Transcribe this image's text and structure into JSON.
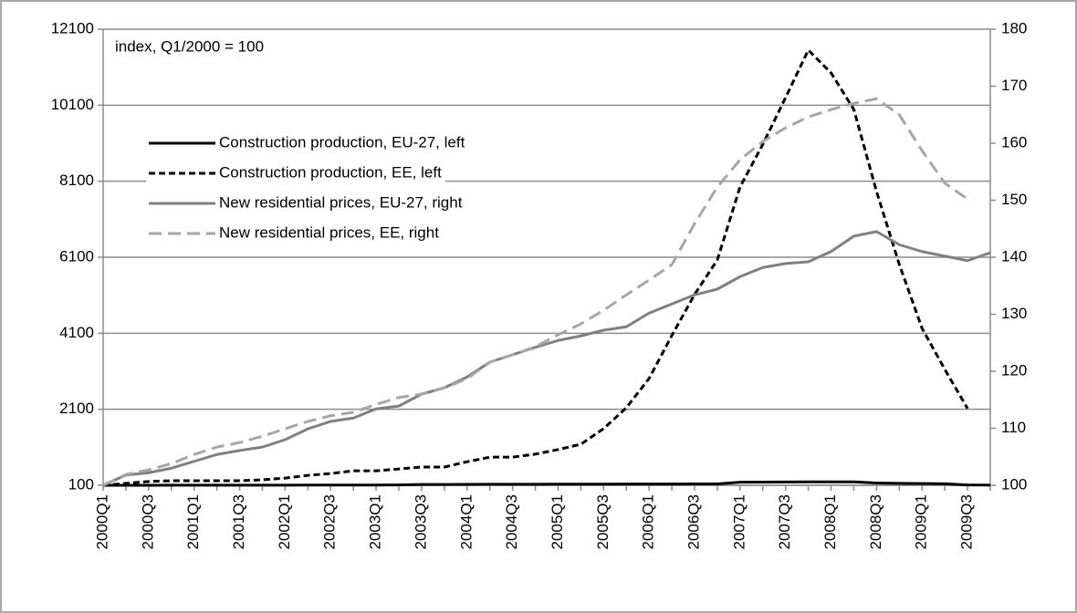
{
  "chart_data": {
    "type": "line",
    "annotation": "index, Q1/2000 = 100",
    "categories": [
      "2000Q1",
      null,
      "2000Q3",
      null,
      "2001Q1",
      null,
      "2001Q3",
      null,
      "2002Q1",
      null,
      "2002Q3",
      null,
      "2003Q1",
      null,
      "2003Q3",
      null,
      "2004Q1",
      null,
      "2004Q3",
      null,
      "2005Q1",
      null,
      "2005Q3",
      null,
      "2006Q1",
      null,
      "2006Q3",
      null,
      "2007Q1",
      null,
      "2007Q3",
      null,
      "2008Q1",
      null,
      "2008Q3",
      null,
      "2009Q1",
      null,
      "2009Q3",
      null
    ],
    "series": [
      {
        "name": "Construction production, EU-27, left",
        "color": "#000000",
        "dashed": false,
        "values": [
          100,
          100,
          101,
          102,
          102,
          103,
          103,
          104,
          104,
          105,
          106,
          106,
          107,
          108,
          120,
          122,
          124,
          126,
          127,
          128,
          129,
          130,
          131,
          132,
          133,
          134,
          135,
          136,
          180,
          185,
          188,
          190,
          190,
          190,
          160,
          150,
          145,
          140,
          110,
          105
        ]
      },
      {
        "name": "Construction production, EE, left",
        "color": "#000000",
        "dashed": true,
        "values": [
          100,
          150,
          200,
          220,
          220,
          220,
          220,
          244,
          290,
          360,
          410,
          480,
          480,
          530,
          580,
          580,
          720,
          840,
          840,
          920,
          1040,
          1180,
          1590,
          2140,
          2910,
          4040,
          5120,
          6030,
          7950,
          9070,
          10300,
          11550,
          10950,
          9990,
          7830,
          5910,
          4230,
          3150,
          2120,
          null
        ]
      },
      {
        "name": "New residential prices, EU-27, right",
        "color": "#808080",
        "dashed": false,
        "axis": "y2",
        "values": [
          100,
          101.8,
          102.2,
          103,
          104.2,
          105.4,
          106.1,
          106.7,
          108,
          109.9,
          111.2,
          111.8,
          113.4,
          113.9,
          116,
          117.1,
          119,
          121.6,
          122.9,
          124.2,
          125.4,
          126.2,
          127.2,
          127.8,
          130.2,
          131.8,
          133.4,
          134.4,
          136.6,
          138.2,
          138.9,
          139.2,
          141,
          143.7,
          144.5,
          142.2,
          141,
          140.2,
          139.4,
          140.8
        ]
      },
      {
        "name": "New residential prices, EE, right",
        "color": "#a6a6a6",
        "dashed": true,
        "axis": "y2",
        "values": [
          100,
          101.9,
          102.7,
          103.8,
          105.4,
          106.7,
          107.5,
          108.6,
          109.9,
          111.2,
          112.2,
          112.8,
          114.2,
          115.4,
          116,
          117.1,
          118.7,
          121.6,
          122.9,
          124.3,
          126.4,
          128.3,
          130.7,
          133.4,
          136,
          138.7,
          145.9,
          152.3,
          157.1,
          160.3,
          162.7,
          164.6,
          165.9,
          167,
          167.8,
          165,
          158.7,
          153,
          150.2,
          null
        ]
      }
    ],
    "ylim": [
      100,
      12100
    ],
    "yticks": [
      100,
      2100,
      4100,
      6100,
      8100,
      10100,
      12100
    ],
    "y2lim": [
      100,
      180
    ],
    "y2ticks": [
      100,
      110,
      120,
      130,
      140,
      150,
      160,
      170,
      180
    ],
    "grid": true,
    "legend": "upper left"
  }
}
